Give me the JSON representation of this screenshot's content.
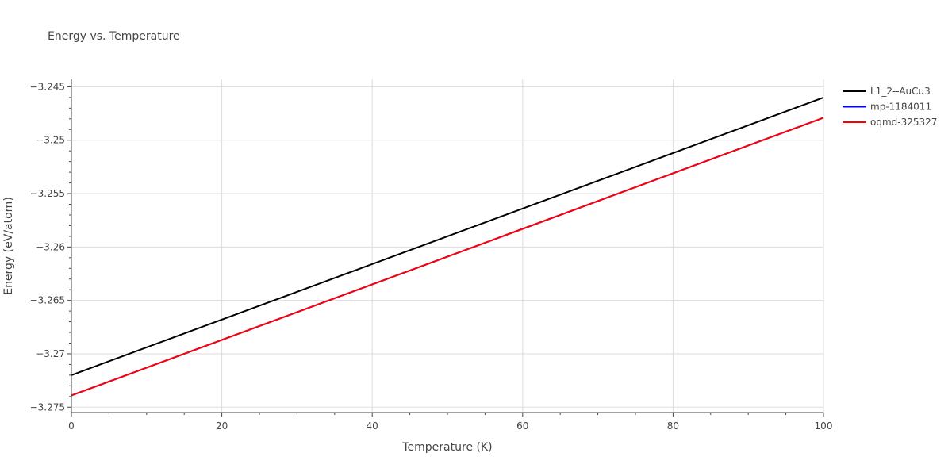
{
  "chart_data": {
    "type": "line",
    "title": "Energy vs. Temperature",
    "xlabel": "Temperature (K)",
    "ylabel": "Energy (eV/atom)",
    "xlim": [
      0,
      100
    ],
    "ylim": [
      -3.2755,
      -3.2443
    ],
    "x_ticks": [
      0,
      20,
      40,
      60,
      80,
      100
    ],
    "x_tick_labels": [
      "0",
      "20",
      "40",
      "60",
      "80",
      "100"
    ],
    "y_ticks": [
      -3.245,
      -3.25,
      -3.255,
      -3.26,
      -3.265,
      -3.27,
      -3.275
    ],
    "y_tick_labels": [
      "−3.245",
      "−3.25",
      "−3.255",
      "−3.26",
      "−3.265",
      "−3.27",
      "−3.275"
    ],
    "grid": true,
    "legend_position": "top-right",
    "series": [
      {
        "name": "L1_2--AuCu3",
        "color": "#000000",
        "x": [
          0,
          100
        ],
        "y": [
          -3.272,
          -3.246
        ]
      },
      {
        "name": "mp-1184011",
        "color": "#0000ff",
        "x": [
          0,
          100
        ],
        "y": [
          -3.2739,
          -3.2479
        ]
      },
      {
        "name": "oqmd-325327",
        "color": "#ff0000",
        "x": [
          0,
          100
        ],
        "y": [
          -3.2739,
          -3.2479
        ]
      }
    ]
  }
}
